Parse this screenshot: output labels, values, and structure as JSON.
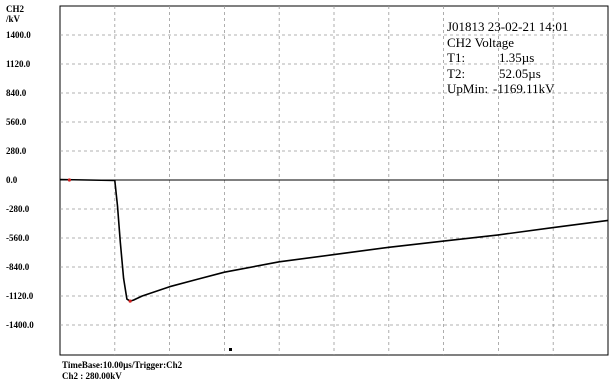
{
  "chart_data": {
    "type": "line",
    "ylabel_line1": "CH2",
    "ylabel_line2": "/kV",
    "y_ticks": [
      {
        "value": 1400,
        "label": "1400.0"
      },
      {
        "value": 1120,
        "label": "1120.0"
      },
      {
        "value": 840,
        "label": "840.0"
      },
      {
        "value": 560,
        "label": "560.0"
      },
      {
        "value": 280,
        "label": "280.0"
      },
      {
        "value": 0,
        "label": "0.0"
      },
      {
        "value": -280,
        "label": "-280.0"
      },
      {
        "value": -560,
        "label": "-560.0"
      },
      {
        "value": -840,
        "label": "-840.0"
      },
      {
        "value": -1120,
        "label": "-1120.0"
      },
      {
        "value": -1400,
        "label": "-1400.0"
      }
    ],
    "xlim": [
      0,
      100
    ],
    "x_unit": "µs",
    "grid": true,
    "series": [
      {
        "x": [
          0,
          5,
          10,
          10.5,
          11,
          11.6,
          12.2,
          12.8,
          13.4,
          15,
          20,
          25,
          30,
          40,
          50,
          60,
          70,
          80,
          90,
          100
        ],
        "y": [
          5,
          0,
          -5,
          -250,
          -600,
          -950,
          -1150,
          -1169,
          -1160,
          -1120,
          -1030,
          -960,
          -890,
          -790,
          -720,
          -650,
          -590,
          -530,
          -460,
          -390
        ]
      }
    ]
  },
  "info": {
    "line1": "J01813  23-02-21 14:01",
    "line2": "CH2 Voltage",
    "t1_label": "T1:",
    "t1_value": "1.35µs",
    "t2_label": "T2:",
    "t2_value": "52.05µs",
    "upmin_label": "UpMin:",
    "upmin_value": "-1169.11kV"
  },
  "footer": {
    "timebase": "TimeBase:10.00µs/Trigger:Ch2",
    "scale": "Ch2 :  280.00kV"
  }
}
